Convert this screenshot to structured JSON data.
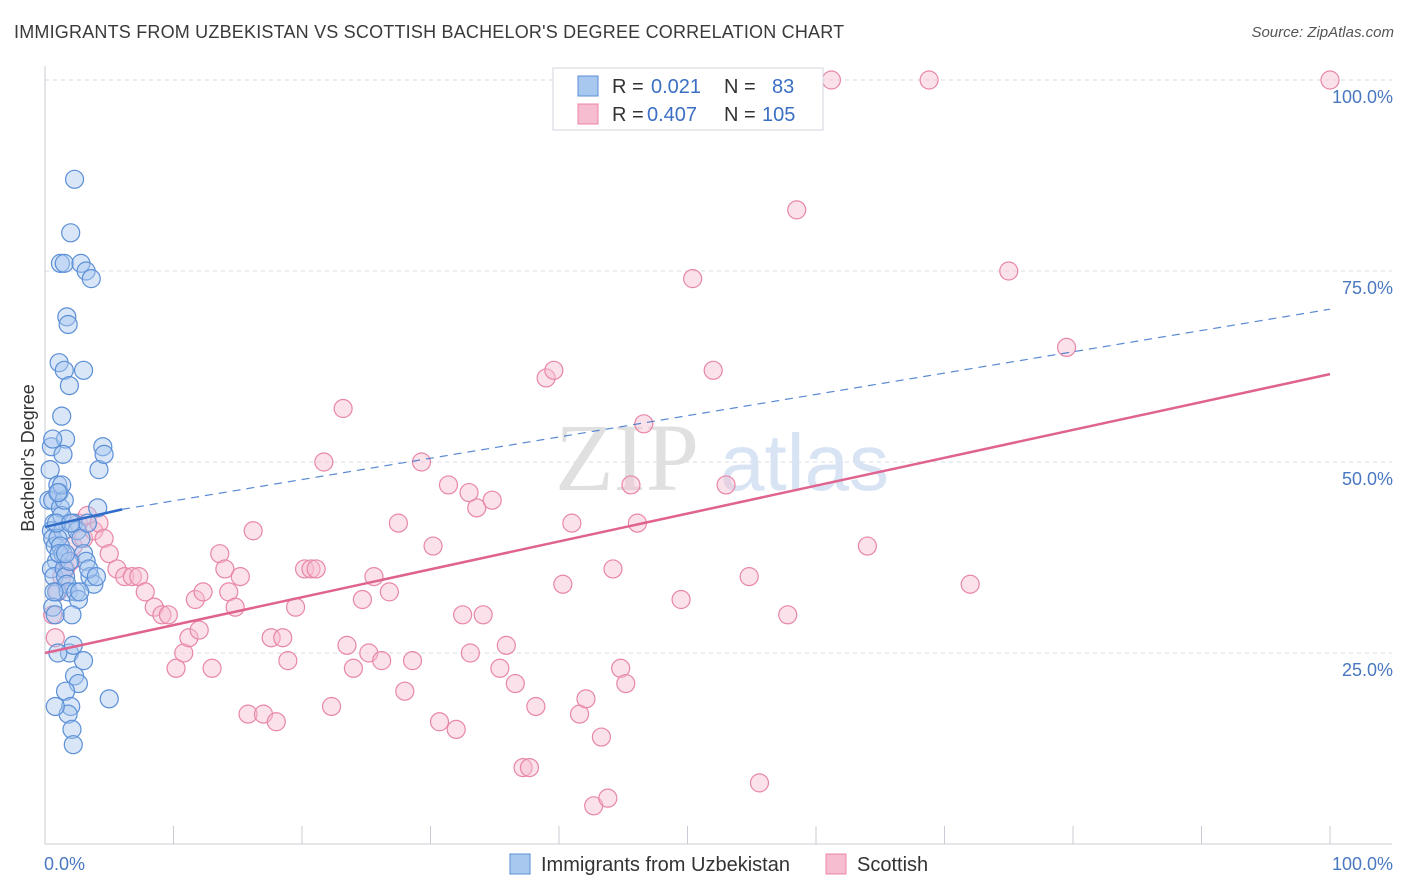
{
  "title": "IMMIGRANTS FROM UZBEKISTAN VS SCOTTISH BACHELOR'S DEGREE CORRELATION CHART",
  "source": "Source: ZipAtlas.com",
  "watermark": {
    "zip": "ZIP",
    "atlas": "atlas"
  },
  "colors": {
    "blue_fill": "#a8c8f0",
    "blue_stroke": "#5b8fd6",
    "blue_line": "#2f6cc8",
    "pink_fill": "#f6bcd0",
    "pink_stroke": "#e886a8",
    "pink_line": "#e0638f",
    "tick_text": "#4a78c0",
    "grid": "#d6dbe4"
  },
  "legend": {
    "rows": [
      {
        "r_label": "R =",
        "r_value": "0.021",
        "n_label": "N =",
        "n_value": "83",
        "series": "blue"
      },
      {
        "r_label": "R =",
        "r_value": "0.407",
        "n_label": "N =",
        "n_value": "105",
        "series": "pink"
      }
    ]
  },
  "chart_data": {
    "type": "scatter",
    "title": "IMMIGRANTS FROM UZBEKISTAN VS SCOTTISH BACHELOR'S DEGREE CORRELATION CHART",
    "xlabel": "",
    "ylabel": "Bachelor's Degree",
    "xlim": [
      0,
      100
    ],
    "ylim": [
      0,
      100
    ],
    "x_ticks": [
      "0.0%",
      "100.0%"
    ],
    "y_ticks": [
      {
        "value": 25,
        "label": "25.0%"
      },
      {
        "value": 50,
        "label": "50.0%"
      },
      {
        "value": 75,
        "label": "75.0%"
      },
      {
        "value": 100,
        "label": "100.0%"
      }
    ],
    "legend_placement": "top-center",
    "grid": true,
    "series": [
      {
        "name": "Immigrants from Uzbekistan",
        "color": "blue",
        "trend": {
          "x": [
            0,
            6
          ],
          "y": [
            41.5,
            43.8
          ],
          "extended_x": [
            6,
            100
          ],
          "extended_y": [
            43.8,
            70.0
          ]
        },
        "points": [
          [
            0.3,
            45
          ],
          [
            0.4,
            49
          ],
          [
            0.5,
            52
          ],
          [
            0.6,
            45
          ],
          [
            0.7,
            42
          ],
          [
            0.5,
            41
          ],
          [
            0.6,
            40
          ],
          [
            0.8,
            39
          ],
          [
            0.9,
            37
          ],
          [
            0.5,
            36
          ],
          [
            0.7,
            35
          ],
          [
            0.9,
            33
          ],
          [
            0.6,
            31
          ],
          [
            0.8,
            30
          ],
          [
            1.0,
            47
          ],
          [
            1.1,
            46
          ],
          [
            1.2,
            44
          ],
          [
            1.3,
            43
          ],
          [
            1.4,
            41
          ],
          [
            1.0,
            40
          ],
          [
            1.2,
            39
          ],
          [
            1.4,
            38
          ],
          [
            1.5,
            36
          ],
          [
            1.6,
            35
          ],
          [
            1.7,
            34
          ],
          [
            1.8,
            33
          ],
          [
            1.1,
            63
          ],
          [
            1.3,
            56
          ],
          [
            1.6,
            53
          ],
          [
            1.4,
            51
          ],
          [
            1.7,
            69
          ],
          [
            1.8,
            68
          ],
          [
            1.5,
            62
          ],
          [
            1.9,
            60
          ],
          [
            1.2,
            76
          ],
          [
            1.5,
            76
          ],
          [
            2.0,
            80
          ],
          [
            2.3,
            87
          ],
          [
            2.8,
            76
          ],
          [
            3.0,
            62
          ],
          [
            3.2,
            75
          ],
          [
            3.6,
            74
          ],
          [
            4.2,
            49
          ],
          [
            4.5,
            52
          ],
          [
            4.6,
            51
          ],
          [
            2.2,
            42
          ],
          [
            2.5,
            41
          ],
          [
            2.8,
            40
          ],
          [
            3.0,
            38
          ],
          [
            3.2,
            37
          ],
          [
            3.5,
            35
          ],
          [
            3.8,
            34
          ],
          [
            2.4,
            33
          ],
          [
            2.6,
            32
          ],
          [
            2.1,
            30
          ],
          [
            1.9,
            25
          ],
          [
            2.2,
            26
          ],
          [
            3.0,
            24
          ],
          [
            2.3,
            22
          ],
          [
            2.6,
            21
          ],
          [
            1.6,
            20
          ],
          [
            2.0,
            18
          ],
          [
            1.8,
            17
          ],
          [
            2.1,
            15
          ],
          [
            2.2,
            13
          ],
          [
            0.8,
            18
          ],
          [
            4.1,
            44
          ],
          [
            3.3,
            42
          ],
          [
            1.5,
            45
          ],
          [
            0.9,
            42
          ],
          [
            1.1,
            38
          ],
          [
            0.7,
            33
          ],
          [
            1.9,
            37
          ],
          [
            2.7,
            33
          ],
          [
            3.4,
            36
          ],
          [
            4.0,
            35
          ],
          [
            1.3,
            47
          ],
          [
            0.6,
            53
          ],
          [
            1.0,
            46
          ],
          [
            1.6,
            38
          ],
          [
            2.0,
            42
          ],
          [
            5.0,
            19
          ],
          [
            1.0,
            25
          ]
        ]
      },
      {
        "name": "Scottish",
        "color": "pink",
        "trend": {
          "x": [
            0,
            100
          ],
          "y": [
            25.0,
            61.5
          ]
        },
        "points": [
          [
            0.6,
            30
          ],
          [
            0.8,
            27
          ],
          [
            1.0,
            33
          ],
          [
            1.3,
            35
          ],
          [
            1.6,
            36
          ],
          [
            2.0,
            37
          ],
          [
            2.2,
            39
          ],
          [
            2.6,
            42
          ],
          [
            3.0,
            40
          ],
          [
            3.3,
            43
          ],
          [
            3.8,
            41
          ],
          [
            4.2,
            42
          ],
          [
            4.6,
            40
          ],
          [
            5.0,
            38
          ],
          [
            5.6,
            36
          ],
          [
            6.2,
            35
          ],
          [
            6.8,
            35
          ],
          [
            7.3,
            35
          ],
          [
            7.8,
            33
          ],
          [
            8.5,
            31
          ],
          [
            9.1,
            30
          ],
          [
            9.6,
            30
          ],
          [
            10.2,
            23
          ],
          [
            10.8,
            25
          ],
          [
            11.2,
            27
          ],
          [
            11.7,
            32
          ],
          [
            12.3,
            33
          ],
          [
            13.0,
            23
          ],
          [
            13.6,
            38
          ],
          [
            14.0,
            36
          ],
          [
            14.3,
            33
          ],
          [
            14.8,
            31
          ],
          [
            15.2,
            35
          ],
          [
            15.8,
            17
          ],
          [
            16.2,
            41
          ],
          [
            17.0,
            17
          ],
          [
            17.6,
            27
          ],
          [
            18.0,
            16
          ],
          [
            18.5,
            27
          ],
          [
            18.9,
            24
          ],
          [
            19.5,
            31
          ],
          [
            20.2,
            36
          ],
          [
            20.7,
            36
          ],
          [
            21.1,
            36
          ],
          [
            21.7,
            50
          ],
          [
            22.3,
            18
          ],
          [
            23.2,
            57
          ],
          [
            23.5,
            26
          ],
          [
            24.0,
            23
          ],
          [
            24.7,
            32
          ],
          [
            25.2,
            25
          ],
          [
            25.6,
            35
          ],
          [
            26.2,
            24
          ],
          [
            26.8,
            33
          ],
          [
            27.5,
            42
          ],
          [
            28.0,
            20
          ],
          [
            28.6,
            24
          ],
          [
            29.3,
            50
          ],
          [
            30.2,
            39
          ],
          [
            30.7,
            16
          ],
          [
            31.4,
            47
          ],
          [
            32.0,
            15
          ],
          [
            32.5,
            30
          ],
          [
            33.1,
            25
          ],
          [
            33.6,
            44
          ],
          [
            34.1,
            30
          ],
          [
            34.8,
            45
          ],
          [
            35.4,
            23
          ],
          [
            35.9,
            26
          ],
          [
            36.6,
            21
          ],
          [
            37.2,
            10
          ],
          [
            37.7,
            10
          ],
          [
            38.2,
            18
          ],
          [
            39.0,
            61
          ],
          [
            39.6,
            62
          ],
          [
            40.3,
            34
          ],
          [
            41.0,
            42
          ],
          [
            41.6,
            17
          ],
          [
            42.1,
            19
          ],
          [
            42.7,
            5
          ],
          [
            43.3,
            14
          ],
          [
            43.8,
            6
          ],
          [
            44.2,
            36
          ],
          [
            44.8,
            23
          ],
          [
            45.2,
            21
          ],
          [
            45.6,
            47
          ],
          [
            46.1,
            42
          ],
          [
            46.6,
            55
          ],
          [
            49.5,
            32
          ],
          [
            50.4,
            74
          ],
          [
            52.0,
            62
          ],
          [
            53.0,
            47
          ],
          [
            54.8,
            35
          ],
          [
            55.6,
            8
          ],
          [
            57.8,
            30
          ],
          [
            58.5,
            83
          ],
          [
            61.2,
            100
          ],
          [
            68.8,
            100
          ],
          [
            72.0,
            34
          ],
          [
            75.0,
            75
          ],
          [
            79.5,
            65
          ],
          [
            100,
            100
          ],
          [
            64.0,
            39
          ],
          [
            33.0,
            46
          ],
          [
            12.0,
            28
          ]
        ]
      }
    ]
  },
  "bottom_legend": [
    {
      "label": "Immigrants from Uzbekistan",
      "series": "blue"
    },
    {
      "label": "Scottish",
      "series": "pink"
    }
  ]
}
